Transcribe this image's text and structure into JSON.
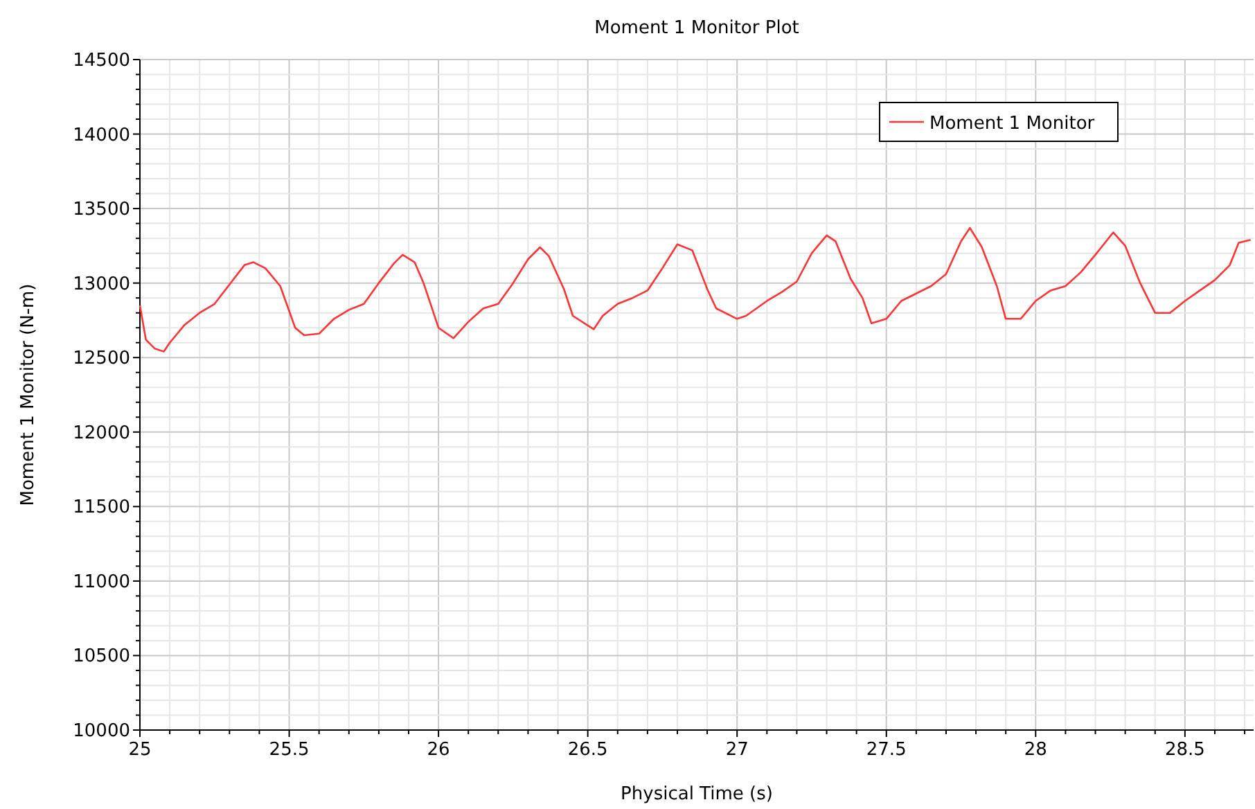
{
  "chart_data": {
    "type": "line",
    "title": "Moment 1 Monitor Plot",
    "xlabel": "Physical Time (s)",
    "ylabel": "Moment 1 Monitor (N-m)",
    "xlim": [
      25,
      28.73
    ],
    "xticks": [
      25,
      {
        "value": 25.1,
        "label": null
      },
      {
        "value": 25.2,
        "label": null
      },
      {
        "value": 25.3,
        "label": null
      },
      {
        "value": 25.4,
        "label": null
      },
      25.5,
      {
        "value": 25.6,
        "label": null
      },
      {
        "value": 25.7,
        "label": null
      },
      {
        "value": 25.8,
        "label": null
      },
      {
        "value": 25.9,
        "label": null
      },
      26,
      {
        "value": 26.1,
        "label": null
      },
      {
        "value": 26.2,
        "label": null
      },
      {
        "value": 26.3,
        "label": null
      },
      {
        "value": 26.4,
        "label": null
      },
      26.5,
      {
        "value": 26.6,
        "label": null
      },
      {
        "value": 26.7,
        "label": null
      },
      {
        "value": 26.8,
        "label": null
      },
      {
        "value": 26.9,
        "label": null
      },
      27,
      {
        "value": 27.1,
        "label": null
      },
      {
        "value": 27.2,
        "label": null
      },
      {
        "value": 27.3,
        "label": null
      },
      {
        "value": 27.4,
        "label": null
      },
      27.5,
      {
        "value": 27.6,
        "label": null
      },
      {
        "value": 27.7,
        "label": null
      },
      {
        "value": 27.8,
        "label": null
      },
      {
        "value": 27.9,
        "label": null
      },
      28,
      {
        "value": 28.1,
        "label": null
      },
      {
        "value": 28.2,
        "label": null
      },
      {
        "value": 28.3,
        "label": null
      },
      {
        "value": 28.4,
        "label": null
      },
      28.5,
      {
        "value": 28.6,
        "label": null
      },
      {
        "value": 28.7,
        "label": null
      }
    ],
    "ylim": [
      10000,
      14500
    ],
    "yticks": [
      10000,
      {
        "value": 10100,
        "label": null
      },
      {
        "value": 10200,
        "label": null
      },
      {
        "value": 10300,
        "label": null
      },
      {
        "value": 10400,
        "label": null
      },
      10500,
      {
        "value": 10600,
        "label": null
      },
      {
        "value": 10700,
        "label": null
      },
      {
        "value": 10800,
        "label": null
      },
      {
        "value": 10900,
        "label": null
      },
      11000,
      {
        "value": 11100,
        "label": null
      },
      {
        "value": 11200,
        "label": null
      },
      {
        "value": 11300,
        "label": null
      },
      {
        "value": 11400,
        "label": null
      },
      11500,
      {
        "value": 11600,
        "label": null
      },
      {
        "value": 11700,
        "label": null
      },
      {
        "value": 11800,
        "label": null
      },
      {
        "value": 11900,
        "label": null
      },
      12000,
      {
        "value": 12100,
        "label": null
      },
      {
        "value": 12200,
        "label": null
      },
      {
        "value": 12300,
        "label": null
      },
      {
        "value": 12400,
        "label": null
      },
      12500,
      {
        "value": 12600,
        "label": null
      },
      {
        "value": 12700,
        "label": null
      },
      {
        "value": 12800,
        "label": null
      },
      {
        "value": 12900,
        "label": null
      },
      13000,
      {
        "value": 13100,
        "label": null
      },
      {
        "value": 13200,
        "label": null
      },
      {
        "value": 13300,
        "label": null
      },
      {
        "value": 13400,
        "label": null
      },
      13500,
      {
        "value": 13600,
        "label": null
      },
      {
        "value": 13700,
        "label": null
      },
      {
        "value": 13800,
        "label": null
      },
      {
        "value": 13900,
        "label": null
      },
      14000,
      {
        "value": 14100,
        "label": null
      },
      {
        "value": 14200,
        "label": null
      },
      {
        "value": 14300,
        "label": null
      },
      {
        "value": 14400,
        "label": null
      },
      14500
    ],
    "grid": true,
    "legend": "top right",
    "marker": "none",
    "line_style": "solid",
    "series": [
      {
        "name": "Moment 1 Monitor",
        "color": "#ff3333",
        "x": [
          25,
          25.02,
          25.05,
          25.08,
          25.1,
          25.15,
          25.2,
          25.25,
          25.3,
          25.35,
          25.38,
          25.42,
          25.47,
          25.52,
          25.55,
          25.6,
          25.65,
          25.7,
          25.75,
          25.8,
          25.85,
          25.88,
          25.92,
          25.95,
          26,
          26.05,
          26.1,
          26.15,
          26.2,
          26.25,
          26.3,
          26.34,
          26.37,
          26.42,
          26.45,
          26.52,
          26.55,
          26.6,
          26.65,
          26.7,
          26.75,
          26.8,
          26.85,
          26.9,
          26.93,
          27,
          27.03,
          27.1,
          27.15,
          27.2,
          27.25,
          27.3,
          27.33,
          27.38,
          27.42,
          27.45,
          27.5,
          27.55,
          27.6,
          27.65,
          27.7,
          27.75,
          27.78,
          27.82,
          27.87,
          27.9,
          27.95,
          28,
          28.05,
          28.1,
          28.15,
          28.2,
          28.26,
          28.3,
          28.35,
          28.4,
          28.45,
          28.5,
          28.55,
          28.6,
          28.65,
          28.68,
          28.72
        ],
        "values": [
          12850,
          12620,
          12560,
          12540,
          12600,
          12720,
          12800,
          12860,
          12990,
          13120,
          13140,
          13100,
          12980,
          12700,
          12650,
          12660,
          12760,
          12820,
          12860,
          13000,
          13130,
          13190,
          13140,
          13000,
          12700,
          12630,
          12740,
          12830,
          12860,
          13000,
          13160,
          13240,
          13180,
          12960,
          12780,
          12690,
          12780,
          12860,
          12900,
          12950,
          13100,
          13260,
          13220,
          12960,
          12830,
          12760,
          12780,
          12880,
          12940,
          13010,
          13200,
          13320,
          13280,
          13030,
          12900,
          12730,
          12760,
          12880,
          12930,
          12980,
          13060,
          13280,
          13370,
          13240,
          12980,
          12760,
          12760,
          12880,
          12950,
          12980,
          13070,
          13190,
          13340,
          13250,
          13000,
          12800,
          12800,
          12880,
          12950,
          13020,
          13120,
          13270,
          13290
        ]
      }
    ]
  }
}
